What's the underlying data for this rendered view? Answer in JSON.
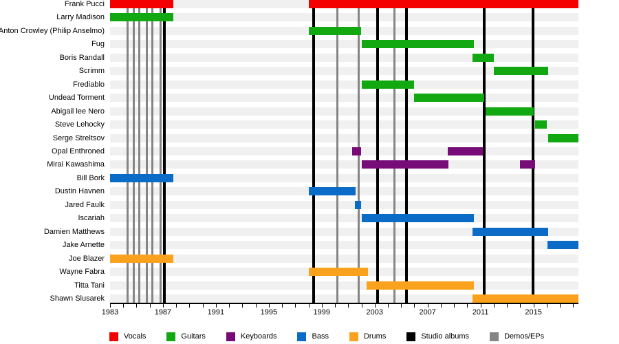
{
  "chart_data": {
    "type": "timeline",
    "description": "Band member timeline (gantt-style) with roles as colored bars and release dates as vertical lines",
    "x_axis": {
      "min": 1983,
      "max": 2018.4,
      "tick_step_years": 1,
      "labels": [
        {
          "text": "1983",
          "year": 1983
        },
        {
          "text": "1987",
          "year": 1987
        },
        {
          "text": "1991",
          "year": 1991
        },
        {
          "text": "1995",
          "year": 1995
        },
        {
          "text": "1999",
          "year": 1999
        },
        {
          "text": "2003",
          "year": 2003
        },
        {
          "text": "2007",
          "year": 2007
        },
        {
          "text": "2011",
          "year": 2011
        },
        {
          "text": "2015",
          "year": 2015
        }
      ]
    },
    "members": [
      {
        "name": "Frank Pucci",
        "role": "vocals",
        "segments": [
          [
            1983.0,
            1987.8
          ],
          [
            1998.0,
            2018.4
          ]
        ]
      },
      {
        "name": "Larry Madison",
        "role": "guitars",
        "segments": [
          [
            1983.0,
            1987.8
          ]
        ]
      },
      {
        "name": "Anton Crowley (Philip Anselmo)",
        "role": "guitars",
        "segments": [
          [
            1998.0,
            2002.0
          ]
        ]
      },
      {
        "name": "Fug",
        "role": "guitars",
        "segments": [
          [
            2002.0,
            2010.5
          ]
        ]
      },
      {
        "name": "Boris Randall",
        "role": "guitars",
        "segments": [
          [
            2010.4,
            2012.0
          ]
        ]
      },
      {
        "name": "Scrimm",
        "role": "guitars",
        "segments": [
          [
            2012.0,
            2016.1
          ]
        ]
      },
      {
        "name": "Frediablo",
        "role": "guitars",
        "segments": [
          [
            2002.0,
            2006.0
          ]
        ]
      },
      {
        "name": "Undead Torment",
        "role": "guitars",
        "segments": [
          [
            2006.0,
            2011.3
          ]
        ]
      },
      {
        "name": "Abigail lee Nero",
        "role": "guitars",
        "segments": [
          [
            2011.4,
            2015.0
          ]
        ]
      },
      {
        "name": "Steve Lehocky",
        "role": "guitars",
        "segments": [
          [
            2015.1,
            2016.0
          ]
        ]
      },
      {
        "name": "Serge Streltsov",
        "role": "guitars",
        "segments": [
          [
            2016.1,
            2018.4
          ]
        ]
      },
      {
        "name": "Opal Enthroned",
        "role": "keyboards",
        "segments": [
          [
            2001.3,
            2001.95
          ],
          [
            2008.5,
            2011.2
          ]
        ]
      },
      {
        "name": "Mirai Kawashima",
        "role": "keyboards",
        "segments": [
          [
            2002.0,
            2008.6
          ],
          [
            2014.0,
            2015.1
          ]
        ]
      },
      {
        "name": "Bill Bork",
        "role": "bass",
        "segments": [
          [
            1983.0,
            1987.8
          ]
        ]
      },
      {
        "name": "Dustin Havnen",
        "role": "bass",
        "segments": [
          [
            1998.0,
            2001.55
          ]
        ]
      },
      {
        "name": "Jared Faulk",
        "role": "bass",
        "segments": [
          [
            2001.5,
            2001.95
          ]
        ]
      },
      {
        "name": "Iscariah",
        "role": "bass",
        "segments": [
          [
            2002.0,
            2010.5
          ]
        ]
      },
      {
        "name": "Damien Matthews",
        "role": "bass",
        "segments": [
          [
            2010.4,
            2016.1
          ]
        ]
      },
      {
        "name": "Jake Arnette",
        "role": "bass",
        "segments": [
          [
            2016.05,
            2018.4
          ]
        ]
      },
      {
        "name": "Joe Blazer",
        "role": "drums",
        "segments": [
          [
            1983.0,
            1987.8
          ]
        ]
      },
      {
        "name": "Wayne Fabra",
        "role": "drums",
        "segments": [
          [
            1998.0,
            2002.5
          ]
        ]
      },
      {
        "name": "Titta Tani",
        "role": "drums",
        "segments": [
          [
            2002.4,
            2010.5
          ]
        ]
      },
      {
        "name": "Shawn Slusarek",
        "role": "drums",
        "segments": [
          [
            2010.4,
            2018.4
          ]
        ]
      }
    ],
    "studio_album_years": [
      1987.1,
      1998.4,
      2003.2,
      2005.4,
      2011.3,
      2014.95
    ],
    "demo_ep_years": [
      1984.3,
      1984.8,
      1985.2,
      1985.8,
      1986.2,
      1986.8,
      2000.2,
      2001.8,
      2004.5
    ]
  },
  "colors": {
    "vocals": "#F40000",
    "guitars": "#12A812",
    "keyboards": "#770B77",
    "bass": "#0B6CC8",
    "drums": "#FAA11E",
    "studio_albums": "#000000",
    "demos_eps": "#858585",
    "row_track": "#F0F0F0"
  },
  "legend": {
    "items": [
      {
        "label": "Vocals",
        "color_key": "vocals"
      },
      {
        "label": "Guitars",
        "color_key": "guitars"
      },
      {
        "label": "Keyboards",
        "color_key": "keyboards"
      },
      {
        "label": "Bass",
        "color_key": "bass"
      },
      {
        "label": "Drums",
        "color_key": "drums"
      },
      {
        "label": "Studio albums",
        "color_key": "studio_albums"
      },
      {
        "label": "Demos/EPs",
        "color_key": "demos_eps"
      }
    ]
  }
}
